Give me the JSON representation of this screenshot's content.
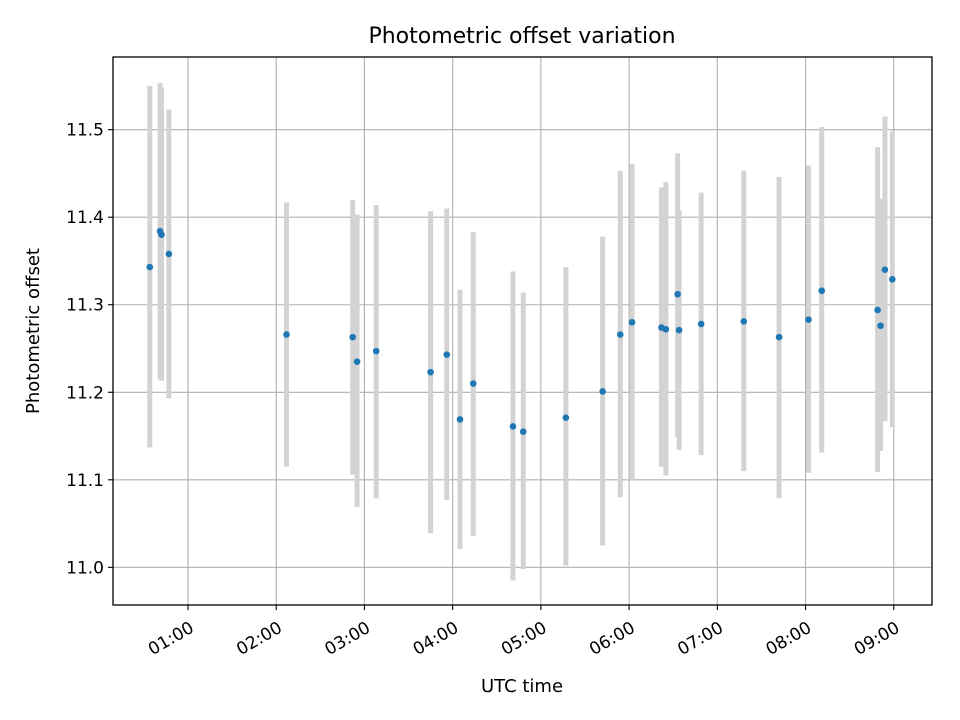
{
  "chart_data": {
    "type": "scatter",
    "title": "Photometric offset variation",
    "xlabel": "UTC time",
    "ylabel": "Photometric offset",
    "grid": true,
    "xlim": [
      "00:09",
      "09:26"
    ],
    "ylim": [
      10.957,
      11.583
    ],
    "x_ticks": [
      "01:00",
      "02:00",
      "03:00",
      "04:00",
      "05:00",
      "06:00",
      "07:00",
      "08:00",
      "09:00"
    ],
    "y_ticks": [
      "11.0",
      "11.1",
      "11.2",
      "11.3",
      "11.4",
      "11.5"
    ],
    "marker_color": "#1f77b4",
    "errorbar_color": "#d3d3d3",
    "series": [
      {
        "points": [
          {
            "x": "00:34",
            "y": 11.343,
            "ylow": 11.137,
            "yhigh": 11.55
          },
          {
            "x": "00:41",
            "y": 11.384,
            "ylow": 11.215,
            "yhigh": 11.553
          },
          {
            "x": "00:42",
            "y": 11.38,
            "ylow": 11.213,
            "yhigh": 11.548
          },
          {
            "x": "00:47",
            "y": 11.358,
            "ylow": 11.193,
            "yhigh": 11.523
          },
          {
            "x": "02:07",
            "y": 11.266,
            "ylow": 11.115,
            "yhigh": 11.417
          },
          {
            "x": "02:52",
            "y": 11.263,
            "ylow": 11.106,
            "yhigh": 11.42
          },
          {
            "x": "02:55",
            "y": 11.235,
            "ylow": 11.069,
            "yhigh": 11.403
          },
          {
            "x": "03:08",
            "y": 11.247,
            "ylow": 11.079,
            "yhigh": 11.414
          },
          {
            "x": "03:45",
            "y": 11.223,
            "ylow": 11.039,
            "yhigh": 11.407
          },
          {
            "x": "03:56",
            "y": 11.243,
            "ylow": 11.077,
            "yhigh": 11.41
          },
          {
            "x": "04:05",
            "y": 11.169,
            "ylow": 11.021,
            "yhigh": 11.317
          },
          {
            "x": "04:14",
            "y": 11.21,
            "ylow": 11.036,
            "yhigh": 11.383
          },
          {
            "x": "04:41",
            "y": 11.161,
            "ylow": 10.985,
            "yhigh": 11.338
          },
          {
            "x": "04:48",
            "y": 11.155,
            "ylow": 10.998,
            "yhigh": 11.314
          },
          {
            "x": "05:17",
            "y": 11.171,
            "ylow": 11.002,
            "yhigh": 11.343
          },
          {
            "x": "05:42",
            "y": 11.201,
            "ylow": 11.025,
            "yhigh": 11.378
          },
          {
            "x": "05:54",
            "y": 11.266,
            "ylow": 11.08,
            "yhigh": 11.453
          },
          {
            "x": "06:02",
            "y": 11.28,
            "ylow": 11.099,
            "yhigh": 11.461
          },
          {
            "x": "06:22",
            "y": 11.274,
            "ylow": 11.115,
            "yhigh": 11.434
          },
          {
            "x": "06:25",
            "y": 11.272,
            "ylow": 11.105,
            "yhigh": 11.44
          },
          {
            "x": "06:33",
            "y": 11.312,
            "ylow": 11.149,
            "yhigh": 11.473
          },
          {
            "x": "06:34",
            "y": 11.271,
            "ylow": 11.134,
            "yhigh": 11.408
          },
          {
            "x": "06:49",
            "y": 11.278,
            "ylow": 11.128,
            "yhigh": 11.428
          },
          {
            "x": "07:18",
            "y": 11.281,
            "ylow": 11.11,
            "yhigh": 11.453
          },
          {
            "x": "07:42",
            "y": 11.263,
            "ylow": 11.079,
            "yhigh": 11.446
          },
          {
            "x": "08:02",
            "y": 11.283,
            "ylow": 11.108,
            "yhigh": 11.459
          },
          {
            "x": "08:11",
            "y": 11.316,
            "ylow": 11.131,
            "yhigh": 11.503
          },
          {
            "x": "08:49",
            "y": 11.294,
            "ylow": 11.109,
            "yhigh": 11.48
          },
          {
            "x": "08:51",
            "y": 11.276,
            "ylow": 11.133,
            "yhigh": 11.421
          },
          {
            "x": "08:54",
            "y": 11.34,
            "ylow": 11.167,
            "yhigh": 11.515
          },
          {
            "x": "08:59",
            "y": 11.329,
            "ylow": 11.16,
            "yhigh": 11.498
          }
        ]
      }
    ]
  }
}
